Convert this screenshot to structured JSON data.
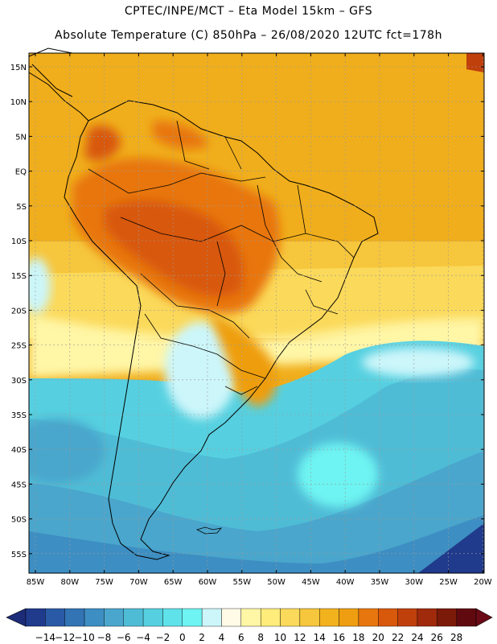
{
  "title_line1": "CPTEC/INPE/MCT –  Eta Model 15km – GFS",
  "title_line2": "Absolute Temperature (C) 850hPa – 26/08/2020 12UTC fct=178h",
  "lat_labels": [
    "15N",
    "10N",
    "5N",
    "EQ",
    "5S",
    "10S",
    "15S",
    "20S",
    "25S",
    "30S",
    "35S",
    "40S",
    "45S",
    "50S",
    "55S"
  ],
  "lon_labels": [
    "85W",
    "80W",
    "75W",
    "70W",
    "65W",
    "60W",
    "55W",
    "50W",
    "45W",
    "40W",
    "35W",
    "30W",
    "25W",
    "20W"
  ],
  "colorbar": {
    "labels": [
      "-14",
      "-12",
      "-10",
      "-8",
      "-6",
      "-4",
      "-2",
      "0",
      "2",
      "4",
      "6",
      "8",
      "10",
      "12",
      "14",
      "16",
      "18",
      "20",
      "22",
      "24",
      "26",
      "28"
    ],
    "colors": [
      "#203a8c",
      "#2a5aa6",
      "#3274b4",
      "#3d8ec2",
      "#4aa6cc",
      "#4fbcd6",
      "#56d0e0",
      "#5fe2ea",
      "#6ef4f2",
      "#ccf6fa",
      "#fffbe6",
      "#fff6a6",
      "#ffec7a",
      "#fbd95a",
      "#f6c63c",
      "#f2b21e",
      "#ee9e10",
      "#e8760e",
      "#d8580c",
      "#c0400c",
      "#a02a0c",
      "#7c1a0a",
      "#600a10"
    ]
  }
}
